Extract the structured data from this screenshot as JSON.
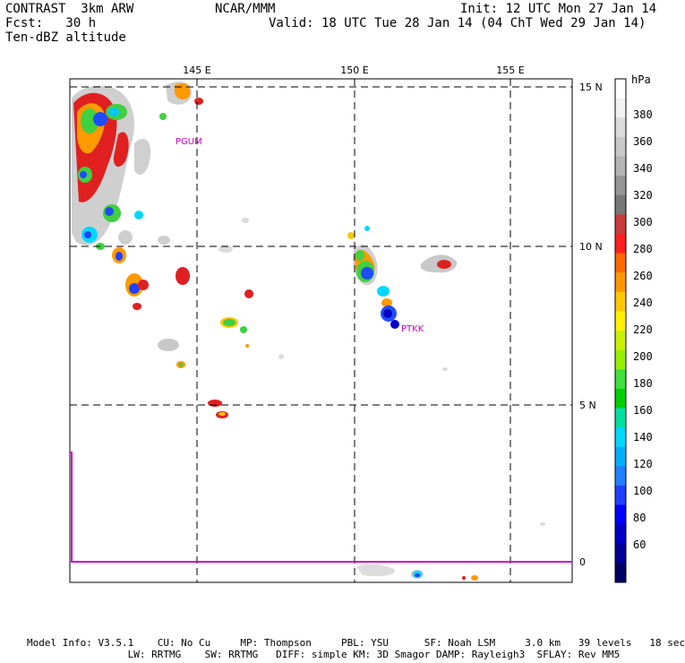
{
  "header": {
    "left_line1": "CONTRAST  3km ARW",
    "left_line2": "Fcst:   30 h",
    "left_line3": "Ten-dBZ altitude",
    "center": "NCAR/MMM",
    "right_line1": "Init: 12 UTC Mon 27 Jan 14",
    "right_line2": "Valid: 18 UTC Tue 28 Jan 14 (04 ChT Wed 29 Jan 14)"
  },
  "map": {
    "lon_labels": [
      "145 E",
      "150 E",
      "155 E"
    ],
    "lat_labels": [
      "15 N",
      "10 N",
      "5 N",
      "0"
    ],
    "stations": [
      {
        "id": "PGUM",
        "label": "PGUM"
      },
      {
        "id": "PTKK",
        "label": "PTKK"
      }
    ],
    "colors": {
      "grid": "#000000",
      "station": "#cc00cc",
      "equator_line": "#cc00cc"
    }
  },
  "colorbar": {
    "unit": "hPa",
    "labels": [
      "380",
      "360",
      "340",
      "320",
      "300",
      "280",
      "260",
      "240",
      "220",
      "200",
      "180",
      "160",
      "140",
      "120",
      "100",
      "80",
      "60"
    ],
    "colors": [
      "#ffffff",
      "#f2f2f2",
      "#dcdcdc",
      "#c8c8c8",
      "#b4b4b4",
      "#969696",
      "#787878",
      "#c83c3c",
      "#ff2020",
      "#ff6a00",
      "#ff9600",
      "#ffc800",
      "#fff000",
      "#c8f000",
      "#96f000",
      "#40e040",
      "#00d000",
      "#00e0a0",
      "#00d8ff",
      "#00b0ff",
      "#2080ff",
      "#2040ff",
      "#0000ff",
      "#0000c8",
      "#000096",
      "#000064"
    ]
  },
  "footer": {
    "line1": "Model Info: V3.5.1    CU: No Cu     MP: Thompson     PBL: YSU      SF: Noah LSM     3.0 km   39 levels   18 sec",
    "line2": "                 LW: RRTMG    SW: RRTMG   DIFF: simple KM: 3D Smagor DAMP: Rayleigh3  SFLAY: Rev MM5"
  }
}
